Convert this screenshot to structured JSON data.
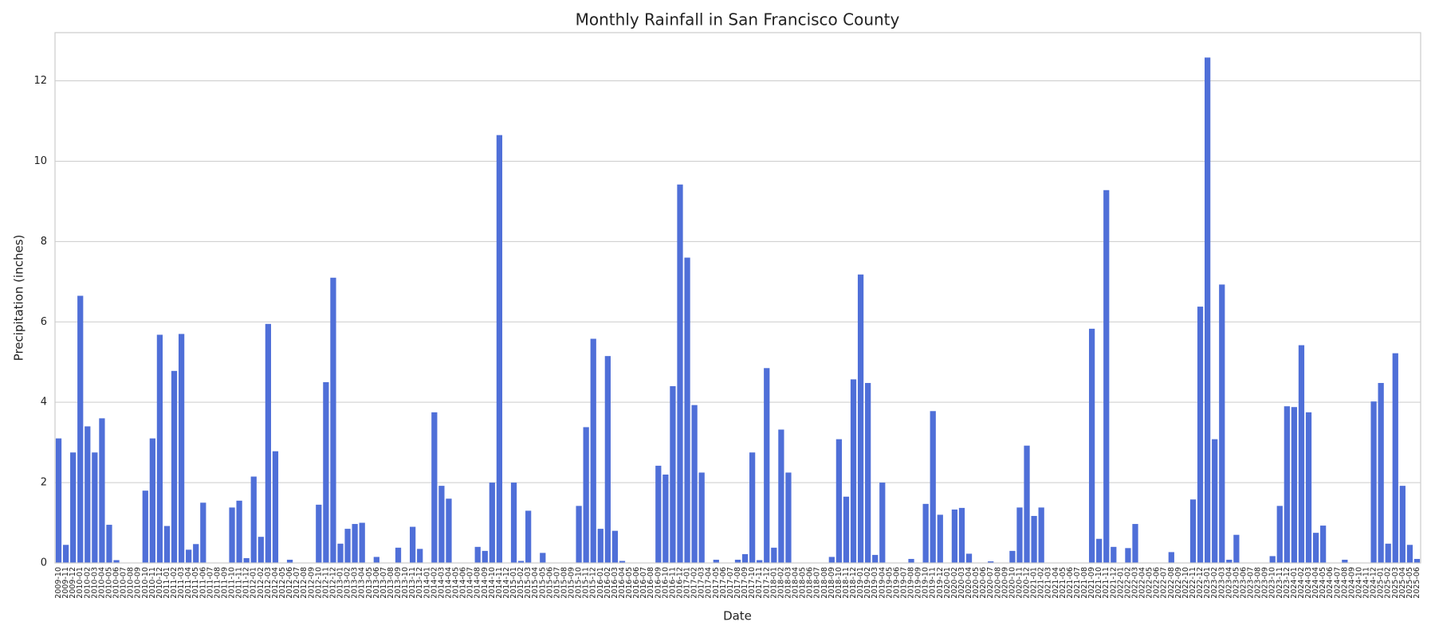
{
  "chart_data": {
    "type": "bar",
    "title": "Monthly Rainfall in San Francisco County",
    "xlabel": "Date",
    "ylabel": "Precipitation (inches)",
    "color": "#4f6fd8",
    "grid": true,
    "ylim": [
      0,
      13.2
    ],
    "yticks": [
      0,
      2,
      4,
      6,
      8,
      10,
      12
    ],
    "categories": [
      "2009-10",
      "2009-11",
      "2009-12",
      "2010-01",
      "2010-02",
      "2010-03",
      "2010-04",
      "2010-05",
      "2010-06",
      "2010-07",
      "2010-08",
      "2010-09",
      "2010-10",
      "2010-11",
      "2010-12",
      "2011-01",
      "2011-02",
      "2011-03",
      "2011-04",
      "2011-05",
      "2011-06",
      "2011-07",
      "2011-08",
      "2011-09",
      "2011-10",
      "2011-11",
      "2011-12",
      "2012-01",
      "2012-02",
      "2012-03",
      "2012-04",
      "2012-05",
      "2012-06",
      "2012-07",
      "2012-08",
      "2012-09",
      "2012-10",
      "2012-11",
      "2012-12",
      "2013-01",
      "2013-02",
      "2013-03",
      "2013-04",
      "2013-05",
      "2013-06",
      "2013-07",
      "2013-08",
      "2013-09",
      "2013-10",
      "2013-11",
      "2013-12",
      "2014-01",
      "2014-02",
      "2014-03",
      "2014-04",
      "2014-05",
      "2014-06",
      "2014-07",
      "2014-08",
      "2014-09",
      "2014-10",
      "2014-11",
      "2014-12",
      "2015-01",
      "2015-02",
      "2015-03",
      "2015-04",
      "2015-05",
      "2015-06",
      "2015-07",
      "2015-08",
      "2015-09",
      "2015-10",
      "2015-11",
      "2015-12",
      "2016-01",
      "2016-02",
      "2016-03",
      "2016-04",
      "2016-05",
      "2016-06",
      "2016-07",
      "2016-08",
      "2016-09",
      "2016-10",
      "2016-11",
      "2016-12",
      "2017-01",
      "2017-02",
      "2017-03",
      "2017-04",
      "2017-05",
      "2017-06",
      "2017-07",
      "2017-08",
      "2017-09",
      "2017-10",
      "2017-11",
      "2017-12",
      "2018-01",
      "2018-02",
      "2018-03",
      "2018-04",
      "2018-05",
      "2018-06",
      "2018-07",
      "2018-08",
      "2018-09",
      "2018-10",
      "2018-11",
      "2018-12",
      "2019-01",
      "2019-02",
      "2019-03",
      "2019-04",
      "2019-05",
      "2019-06",
      "2019-07",
      "2019-08",
      "2019-09",
      "2019-10",
      "2019-11",
      "2019-12",
      "2020-01",
      "2020-02",
      "2020-03",
      "2020-04",
      "2020-05",
      "2020-06",
      "2020-07",
      "2020-08",
      "2020-09",
      "2020-10",
      "2020-11",
      "2020-12",
      "2021-01",
      "2021-02",
      "2021-03",
      "2021-04",
      "2021-05",
      "2021-06",
      "2021-07",
      "2021-08",
      "2021-09",
      "2021-10",
      "2021-11",
      "2021-12",
      "2022-01",
      "2022-02",
      "2022-03",
      "2022-04",
      "2022-05",
      "2022-06",
      "2022-07",
      "2022-08",
      "2022-09",
      "2022-10",
      "2022-11",
      "2022-12",
      "2023-01",
      "2023-02",
      "2023-03",
      "2023-04",
      "2023-05",
      "2023-06",
      "2023-07",
      "2023-08",
      "2023-09",
      "2023-10",
      "2023-11",
      "2023-12",
      "2024-01",
      "2024-02",
      "2024-03",
      "2024-04",
      "2024-05",
      "2024-06",
      "2024-07",
      "2024-08",
      "2024-09",
      "2024-10",
      "2024-11",
      "2024-12",
      "2025-01",
      "2025-02",
      "2025-03",
      "2025-04",
      "2025-05",
      "2025-06"
    ],
    "values": [
      3.1,
      0.45,
      2.75,
      6.65,
      3.4,
      2.75,
      3.6,
      0.95,
      0.07,
      0,
      0,
      0,
      1.8,
      3.1,
      5.68,
      0.92,
      4.78,
      5.7,
      0.33,
      0.47,
      1.5,
      0,
      0,
      0,
      1.38,
      1.55,
      0.12,
      2.15,
      0.65,
      5.95,
      2.78,
      0,
      0.08,
      0,
      0,
      0,
      1.45,
      4.5,
      7.1,
      0.48,
      0.85,
      0.97,
      1.0,
      0,
      0.15,
      0,
      0,
      0.38,
      0,
      0.9,
      0.35,
      0,
      3.75,
      1.92,
      1.6,
      0,
      0,
      0,
      0.4,
      0.3,
      2.0,
      10.65,
      0,
      2.0,
      0.05,
      1.3,
      0,
      0.25,
      0,
      0,
      0,
      0,
      1.42,
      3.38,
      5.58,
      0.85,
      5.15,
      0.8,
      0.05,
      0,
      0,
      0,
      0,
      2.42,
      2.2,
      4.4,
      9.42,
      7.6,
      3.93,
      2.25,
      0,
      0.08,
      0,
      0,
      0.08,
      0.22,
      2.75,
      0.07,
      4.85,
      0.38,
      3.32,
      2.25,
      0,
      0,
      0,
      0,
      0,
      0.15,
      3.08,
      1.65,
      4.57,
      7.18,
      4.48,
      0.2,
      2.0,
      0,
      0,
      0,
      0.1,
      0,
      1.47,
      3.78,
      1.2,
      0,
      1.33,
      1.37,
      0.23,
      0,
      0,
      0.04,
      0,
      0,
      0.3,
      1.38,
      2.92,
      1.17,
      1.38,
      0,
      0,
      0,
      0,
      0,
      0,
      5.83,
      0.6,
      9.28,
      0.4,
      0,
      0.37,
      0.97,
      0,
      0,
      0,
      0,
      0.27,
      0,
      0,
      1.58,
      6.38,
      12.58,
      3.08,
      6.93,
      0.08,
      0.7,
      0,
      0,
      0,
      0,
      0.17,
      1.42,
      3.9,
      3.88,
      5.42,
      3.75,
      0.75,
      0.93,
      0,
      0,
      0.08,
      0,
      0,
      0,
      4.02,
      4.48,
      0.48,
      5.22,
      1.92,
      0.45,
      0.1
    ]
  }
}
